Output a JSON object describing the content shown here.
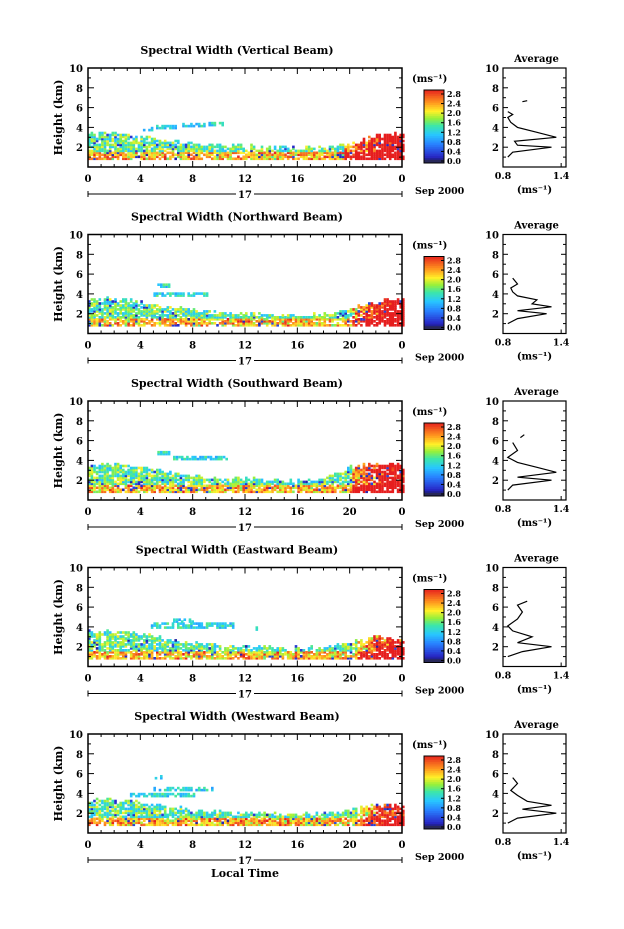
{
  "chart_data": [
    {
      "type": "heatmap",
      "title": "Spectral Width (Vertical Beam)",
      "ylabel": "Height (km)",
      "ylim": [
        0,
        10
      ],
      "yticks": [
        "2",
        "4",
        "6",
        "8",
        "10"
      ],
      "xlim": [
        0,
        24
      ],
      "xticks": [
        "0",
        "4",
        "8",
        "12",
        "16",
        "20",
        "0"
      ],
      "day_label": "17",
      "date_label": "Sep 2000",
      "colorbar": {
        "unit": "(ms⁻¹)",
        "ticks": [
          "2.8",
          "2.4",
          "2.0",
          "1.6",
          "1.2",
          "0.8",
          "0.4",
          "0.0"
        ]
      },
      "average": {
        "title": "Average",
        "xunit": "(ms⁻¹)",
        "xticks": [
          "0.8",
          "1.4"
        ],
        "profile": [
          [
            0.85,
            1.0
          ],
          [
            0.9,
            1.5
          ],
          [
            1.3,
            2.0
          ],
          [
            0.95,
            2.2
          ],
          [
            0.92,
            2.6
          ],
          [
            1.35,
            3.0
          ],
          [
            1.15,
            3.5
          ],
          [
            0.95,
            4.0
          ],
          [
            0.88,
            4.5
          ],
          [
            0.85,
            5.0
          ],
          [
            0.9,
            5.3
          ],
          [
            0.85,
            5.6
          ]
        ],
        "aloft": [
          [
            1.0,
            6.6
          ],
          [
            1.05,
            6.7
          ]
        ]
      },
      "echo": {
        "main": [
          [
            0,
            3.2
          ],
          [
            2,
            3.3
          ],
          [
            4,
            3.0
          ],
          [
            6,
            2.5
          ],
          [
            8,
            2.2
          ],
          [
            10,
            2.0
          ],
          [
            12,
            2.0
          ],
          [
            14,
            1.8
          ],
          [
            16,
            1.8
          ],
          [
            18,
            1.8
          ],
          [
            20,
            2.2
          ],
          [
            22,
            3.0
          ],
          [
            24,
            3.2
          ]
        ],
        "aloft": [
          [
            5.2,
            3.8,
            6.8,
            4.1
          ],
          [
            7.2,
            4.0,
            8.8,
            4.3
          ],
          [
            9.2,
            4.1,
            10.2,
            4.4
          ],
          [
            4.2,
            3.6,
            5.0,
            3.9
          ]
        ],
        "high_start": 19.5,
        "high_level": 0.8
      }
    },
    {
      "type": "heatmap",
      "title": "Spectral Width (Northward Beam)",
      "ylabel": "Height (km)",
      "ylim": [
        0,
        10
      ],
      "yticks": [
        "2",
        "4",
        "6",
        "8",
        "10"
      ],
      "xlim": [
        0,
        24
      ],
      "xticks": [
        "0",
        "4",
        "8",
        "12",
        "16",
        "20",
        "0"
      ],
      "day_label": "17",
      "date_label": "Sep 2000",
      "colorbar": {
        "unit": "(ms⁻¹)",
        "ticks": [
          "2.8",
          "2.4",
          "2.0",
          "1.6",
          "1.2",
          "0.8",
          "0.4",
          "0.0"
        ]
      },
      "average": {
        "title": "Average",
        "xunit": "(ms⁻¹)",
        "xticks": [
          "0.8",
          "1.4"
        ],
        "profile": [
          [
            0.85,
            1.0
          ],
          [
            0.95,
            1.5
          ],
          [
            1.25,
            2.0
          ],
          [
            0.95,
            2.3
          ],
          [
            1.3,
            2.7
          ],
          [
            1.1,
            3.0
          ],
          [
            1.15,
            3.4
          ],
          [
            0.95,
            3.8
          ],
          [
            0.9,
            4.2
          ],
          [
            0.88,
            4.6
          ],
          [
            0.95,
            5.0
          ],
          [
            0.9,
            5.6
          ]
        ],
        "aloft": []
      },
      "echo": {
        "main": [
          [
            0,
            3.3
          ],
          [
            2,
            3.4
          ],
          [
            4,
            3.0
          ],
          [
            6,
            2.5
          ],
          [
            8,
            2.2
          ],
          [
            10,
            2.0
          ],
          [
            12,
            1.8
          ],
          [
            14,
            1.7
          ],
          [
            16,
            1.7
          ],
          [
            18,
            1.8
          ],
          [
            20,
            2.4
          ],
          [
            22,
            3.2
          ],
          [
            24,
            3.3
          ]
        ],
        "aloft": [
          [
            5.0,
            3.7,
            9.0,
            4.0
          ],
          [
            5.3,
            4.6,
            6.2,
            4.9
          ]
        ],
        "high_start": 20.0,
        "high_level": 0.7
      }
    },
    {
      "type": "heatmap",
      "title": "Spectral Width (Southward Beam)",
      "ylabel": "Height (km)",
      "ylim": [
        0,
        10
      ],
      "yticks": [
        "2",
        "4",
        "6",
        "8",
        "10"
      ],
      "xlim": [
        0,
        24
      ],
      "xticks": [
        "0",
        "4",
        "8",
        "12",
        "16",
        "20",
        "0"
      ],
      "day_label": "17",
      "date_label": "Sep 2000",
      "colorbar": {
        "unit": "(ms⁻¹)",
        "ticks": [
          "2.8",
          "2.4",
          "2.0",
          "1.6",
          "1.2",
          "0.8",
          "0.4",
          "0.0"
        ]
      },
      "average": {
        "title": "Average",
        "xunit": "(ms⁻¹)",
        "xticks": [
          "0.8",
          "1.4"
        ],
        "profile": [
          [
            0.85,
            1.0
          ],
          [
            0.9,
            1.5
          ],
          [
            1.3,
            2.0
          ],
          [
            0.95,
            2.3
          ],
          [
            1.35,
            2.8
          ],
          [
            1.15,
            3.3
          ],
          [
            0.95,
            3.8
          ],
          [
            0.85,
            4.3
          ],
          [
            0.95,
            5.0
          ],
          [
            0.9,
            5.8
          ]
        ],
        "aloft": [
          [
            0.98,
            6.3
          ],
          [
            1.02,
            6.6
          ]
        ]
      },
      "echo": {
        "main": [
          [
            0,
            3.4
          ],
          [
            2,
            3.5
          ],
          [
            4,
            3.2
          ],
          [
            6,
            2.6
          ],
          [
            8,
            2.3
          ],
          [
            10,
            2.1
          ],
          [
            12,
            2.0
          ],
          [
            14,
            1.9
          ],
          [
            16,
            1.8
          ],
          [
            18,
            2.0
          ],
          [
            20,
            3.2
          ],
          [
            22,
            3.5
          ],
          [
            24,
            3.4
          ]
        ],
        "aloft": [
          [
            6.5,
            4.0,
            10.5,
            4.4
          ],
          [
            5.3,
            4.5,
            6.2,
            4.8
          ]
        ],
        "high_start": 20.0,
        "high_level": 0.75
      }
    },
    {
      "type": "heatmap",
      "title": "Spectral Width (Eastward Beam)",
      "ylabel": "Height (km)",
      "ylim": [
        0,
        10
      ],
      "yticks": [
        "2",
        "4",
        "6",
        "8",
        "10"
      ],
      "xlim": [
        0,
        24
      ],
      "xticks": [
        "0",
        "4",
        "8",
        "12",
        "16",
        "20",
        "0"
      ],
      "day_label": "17",
      "date_label": "Sep 2000",
      "colorbar": {
        "unit": "(ms⁻¹)",
        "ticks": [
          "2.8",
          "2.4",
          "2.0",
          "1.6",
          "1.2",
          "0.8",
          "0.4",
          "0.0"
        ]
      },
      "average": {
        "title": "Average",
        "xunit": "(ms⁻¹)",
        "xticks": [
          "0.8",
          "1.4"
        ],
        "profile": [
          [
            0.85,
            1.0
          ],
          [
            1.0,
            1.5
          ],
          [
            1.3,
            2.0
          ],
          [
            0.95,
            2.4
          ],
          [
            1.1,
            3.0
          ],
          [
            0.9,
            3.6
          ],
          [
            0.85,
            4.1
          ],
          [
            0.95,
            4.8
          ],
          [
            1.0,
            5.5
          ],
          [
            0.95,
            6.2
          ],
          [
            1.05,
            6.6
          ]
        ],
        "aloft": []
      },
      "echo": {
        "main": [
          [
            0,
            3.4
          ],
          [
            2,
            3.4
          ],
          [
            4,
            3.1
          ],
          [
            6,
            2.6
          ],
          [
            8,
            2.2
          ],
          [
            10,
            2.0
          ],
          [
            12,
            1.9
          ],
          [
            14,
            1.8
          ],
          [
            16,
            1.7
          ],
          [
            18,
            1.8
          ],
          [
            20,
            2.4
          ],
          [
            22,
            2.8
          ],
          [
            24,
            2.6
          ]
        ],
        "aloft": [
          [
            4.8,
            3.8,
            11.0,
            4.3
          ],
          [
            6.5,
            4.4,
            8.0,
            4.7
          ],
          [
            12.8,
            3.6,
            13.2,
            3.9
          ]
        ],
        "high_start": 20.5,
        "high_level": 0.6
      }
    },
    {
      "type": "heatmap",
      "title": "Spectral Width (Westward Beam)",
      "ylabel": "Height (km)",
      "ylim": [
        0,
        10
      ],
      "yticks": [
        "2",
        "4",
        "6",
        "8",
        "10"
      ],
      "xlim": [
        0,
        24
      ],
      "xticks": [
        "0",
        "4",
        "8",
        "12",
        "16",
        "20",
        "0"
      ],
      "day_label": "17",
      "date_label": "Sep 2000",
      "xlabel": "Local Time",
      "colorbar": {
        "unit": "(ms⁻¹)",
        "ticks": [
          "2.8",
          "2.4",
          "2.0",
          "1.6",
          "1.2",
          "0.8",
          "0.4",
          "0.0"
        ]
      },
      "average": {
        "title": "Average",
        "xunit": "(ms⁻¹)",
        "xticks": [
          "0.8",
          "1.4"
        ],
        "profile": [
          [
            0.85,
            1.0
          ],
          [
            0.95,
            1.5
          ],
          [
            1.35,
            2.0
          ],
          [
            1.0,
            2.4
          ],
          [
            1.3,
            2.8
          ],
          [
            1.05,
            3.2
          ],
          [
            0.95,
            3.8
          ],
          [
            0.88,
            4.3
          ],
          [
            0.95,
            5.0
          ],
          [
            0.9,
            5.6
          ]
        ],
        "aloft": []
      },
      "echo": {
        "main": [
          [
            0,
            3.1
          ],
          [
            2,
            3.2
          ],
          [
            4,
            3.0
          ],
          [
            6,
            2.5
          ],
          [
            8,
            2.2
          ],
          [
            10,
            2.0
          ],
          [
            12,
            1.9
          ],
          [
            14,
            1.8
          ],
          [
            16,
            1.8
          ],
          [
            18,
            1.8
          ],
          [
            20,
            2.2
          ],
          [
            22,
            2.8
          ],
          [
            24,
            2.6
          ]
        ],
        "aloft": [
          [
            3.2,
            3.6,
            8.2,
            4.0
          ],
          [
            5.0,
            4.2,
            9.5,
            4.5
          ],
          [
            5.1,
            5.4,
            5.6,
            5.7
          ]
        ],
        "high_start": 20.5,
        "high_level": 0.5
      }
    }
  ]
}
